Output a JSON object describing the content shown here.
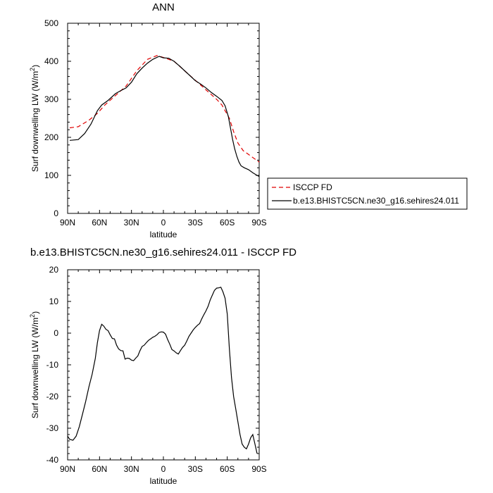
{
  "chart_data": [
    {
      "type": "line",
      "title": "ANN",
      "xlabel": "latitude",
      "ylabel": "Surf downwelling LW (W/m",
      "ylabel_sup": "2",
      "ylabel_close": ")",
      "xlim": [
        90,
        -90
      ],
      "ylim": [
        0,
        500
      ],
      "xticks": [
        {
          "value": 90,
          "label": "90N"
        },
        {
          "value": 60,
          "label": "60N"
        },
        {
          "value": 30,
          "label": "30N"
        },
        {
          "value": 0,
          "label": "0"
        },
        {
          "value": -30,
          "label": "30S"
        },
        {
          "value": -60,
          "label": "60S"
        },
        {
          "value": -90,
          "label": "90S"
        }
      ],
      "yticks": [
        0,
        100,
        200,
        300,
        400,
        500
      ],
      "grid": false,
      "legend": "right",
      "series": [
        {
          "name": "ISCCP FD",
          "color": "#e00000",
          "dash": "dashed",
          "x": [
            88,
            80,
            70,
            62,
            55,
            45,
            35,
            25,
            15,
            6,
            0,
            -10,
            -20,
            -30,
            -40,
            -50,
            -55,
            -58,
            -62,
            -66,
            -70,
            -75,
            -80,
            -85,
            -90
          ],
          "y": [
            225,
            228,
            245,
            263,
            285,
            310,
            335,
            375,
            405,
            415,
            410,
            400,
            375,
            350,
            325,
            300,
            285,
            270,
            250,
            215,
            185,
            165,
            155,
            145,
            135
          ]
        },
        {
          "name": "b.e13.BHISTC5CN.ne30_g16.sehires24.011",
          "color": "#000000",
          "dash": "solid",
          "x": [
            88,
            80,
            74,
            68,
            62,
            58,
            52,
            45,
            40,
            35,
            30,
            25,
            20,
            15,
            10,
            4,
            0,
            -5,
            -10,
            -15,
            -20,
            -25,
            -30,
            -35,
            -40,
            -45,
            -50,
            -55,
            -58,
            -61,
            -63,
            -65,
            -67,
            -69,
            -71,
            -73,
            -76,
            -80,
            -84,
            -88,
            -90
          ],
          "y": [
            192,
            194,
            210,
            235,
            270,
            285,
            297,
            315,
            323,
            330,
            345,
            367,
            382,
            395,
            405,
            413,
            409,
            408,
            400,
            388,
            375,
            362,
            349,
            340,
            330,
            318,
            308,
            297,
            283,
            255,
            225,
            195,
            170,
            150,
            135,
            125,
            120,
            115,
            107,
            100,
            97
          ]
        }
      ]
    },
    {
      "type": "line",
      "title": "b.e13.BHISTC5CN.ne30_g16.sehires24.011 - ISCCP FD",
      "xlabel": "latitude",
      "ylabel": "Surf downwelling LW (W/m",
      "ylabel_sup": "2",
      "ylabel_close": ")",
      "xlim": [
        90,
        -90
      ],
      "ylim": [
        -40,
        20
      ],
      "xticks": [
        {
          "value": 90,
          "label": "90N"
        },
        {
          "value": 60,
          "label": "60N"
        },
        {
          "value": 30,
          "label": "30N"
        },
        {
          "value": 0,
          "label": "0"
        },
        {
          "value": -30,
          "label": "30S"
        },
        {
          "value": -60,
          "label": "60S"
        },
        {
          "value": -90,
          "label": "90S"
        }
      ],
      "yticks": [
        20,
        10,
        0,
        -10,
        -20,
        -30,
        -40
      ],
      "grid": false,
      "series": [
        {
          "color": "#000000",
          "dash": "solid",
          "x": [
            90,
            88,
            85,
            82,
            79,
            76,
            73,
            70,
            67,
            64,
            62,
            60,
            58,
            56,
            54,
            52,
            50,
            48,
            46,
            44,
            42,
            40,
            38,
            36,
            34,
            32,
            30,
            28,
            26,
            24,
            22,
            20,
            18,
            16,
            14,
            12,
            10,
            8,
            6,
            4,
            2,
            0,
            -2,
            -4,
            -6,
            -8,
            -10,
            -12,
            -14,
            -16,
            -18,
            -20,
            -22,
            -24,
            -26,
            -28,
            -30,
            -32,
            -34,
            -36,
            -38,
            -40,
            -42,
            -44,
            -46,
            -48,
            -50,
            -52,
            -54,
            -56,
            -58,
            -60,
            -62,
            -64,
            -66,
            -68,
            -70,
            -72,
            -74,
            -76,
            -78,
            -80,
            -82,
            -84,
            -86,
            -88
          ],
          "y": [
            -32.5,
            -33.5,
            -33.8,
            -32.5,
            -29.5,
            -25.5,
            -21.5,
            -17,
            -13,
            -8,
            -3,
            0.8,
            2.8,
            2.2,
            1.2,
            0.8,
            -0.5,
            -1.7,
            -1.8,
            -3.8,
            -5,
            -5.5,
            -5.6,
            -8.2,
            -7.9,
            -8.0,
            -8.5,
            -8.7,
            -7.9,
            -7.2,
            -5.5,
            -4.2,
            -3.8,
            -3.0,
            -2.3,
            -1.8,
            -1.3,
            -1.0,
            -0.5,
            0.2,
            0.4,
            0.3,
            -0.3,
            -2.0,
            -3.5,
            -5.2,
            -5.6,
            -6.2,
            -6.6,
            -5.5,
            -4.5,
            -3.8,
            -2.5,
            -1.0,
            0.0,
            1.0,
            1.8,
            2.5,
            3.0,
            4.5,
            5.8,
            7.0,
            8.5,
            10.5,
            12.0,
            13.5,
            14.2,
            14.3,
            14.5,
            13.0,
            11.0,
            6.0,
            -5,
            -14,
            -20,
            -24,
            -28,
            -32,
            -35,
            -36,
            -36.5,
            -35,
            -33,
            -32,
            -35,
            -38
          ]
        }
      ]
    }
  ]
}
